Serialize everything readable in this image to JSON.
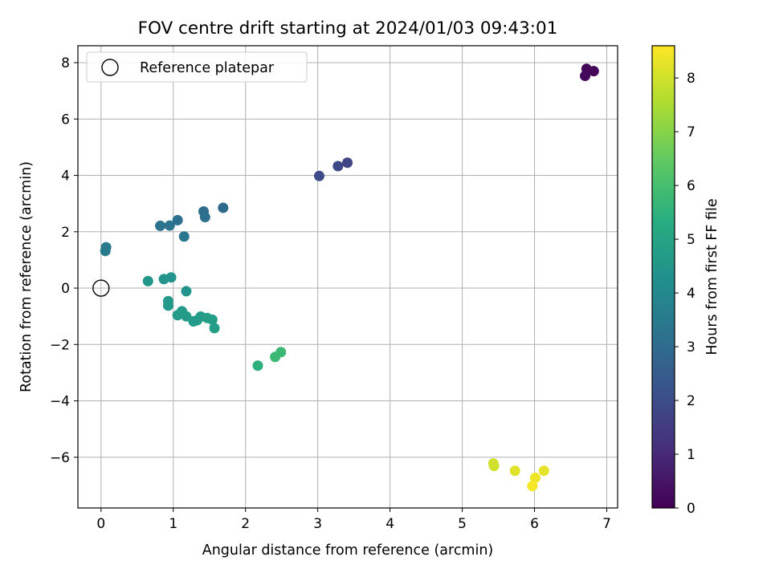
{
  "chart_data": {
    "type": "scatter",
    "title": "FOV centre drift starting at 2024/01/03 09:43:01",
    "xlabel": "Angular distance from reference (arcmin)",
    "ylabel": "Rotation from reference (arcmin)",
    "xlim": [
      -0.32,
      7.15
    ],
    "ylim": [
      -7.8,
      8.6
    ],
    "xticks": [
      0,
      1,
      2,
      3,
      4,
      5,
      6,
      7
    ],
    "yticks": [
      -6,
      -4,
      -2,
      0,
      2,
      4,
      6,
      8
    ],
    "grid": true,
    "legend": {
      "position": "top-left",
      "entries": [
        {
          "label": "Reference platepar",
          "marker": "open-circle"
        }
      ]
    },
    "reference_point": {
      "x": 0,
      "y": 0
    },
    "colorbar": {
      "label": "Hours from first FF file",
      "range": [
        0,
        8.6
      ],
      "ticks": [
        0,
        1,
        2,
        3,
        4,
        5,
        6,
        7,
        8
      ],
      "colormap": "viridis"
    },
    "points": [
      {
        "x": 6.72,
        "y": 7.78,
        "c": 0.1
      },
      {
        "x": 6.82,
        "y": 7.7,
        "c": 0.15
      },
      {
        "x": 6.7,
        "y": 7.53,
        "c": 0.2
      },
      {
        "x": 3.41,
        "y": 4.45,
        "c": 1.8
      },
      {
        "x": 3.28,
        "y": 4.33,
        "c": 1.9
      },
      {
        "x": 3.02,
        "y": 3.98,
        "c": 2.0
      },
      {
        "x": 1.69,
        "y": 2.85,
        "c": 3.0
      },
      {
        "x": 1.42,
        "y": 2.72,
        "c": 3.1
      },
      {
        "x": 1.44,
        "y": 2.52,
        "c": 3.2
      },
      {
        "x": 1.06,
        "y": 2.41,
        "c": 3.2
      },
      {
        "x": 0.82,
        "y": 2.21,
        "c": 3.3
      },
      {
        "x": 0.95,
        "y": 2.22,
        "c": 3.3
      },
      {
        "x": 1.15,
        "y": 1.83,
        "c": 3.4
      },
      {
        "x": 0.07,
        "y": 1.45,
        "c": 3.5
      },
      {
        "x": 0.06,
        "y": 1.32,
        "c": 3.5
      },
      {
        "x": 0.65,
        "y": 0.25,
        "c": 4.5
      },
      {
        "x": 0.87,
        "y": 0.32,
        "c": 4.4
      },
      {
        "x": 0.97,
        "y": 0.38,
        "c": 4.4
      },
      {
        "x": 1.18,
        "y": -0.11,
        "c": 4.4
      },
      {
        "x": 0.93,
        "y": -0.46,
        "c": 4.6
      },
      {
        "x": 0.93,
        "y": -0.62,
        "c": 4.6
      },
      {
        "x": 1.06,
        "y": -0.96,
        "c": 4.7
      },
      {
        "x": 1.12,
        "y": -0.82,
        "c": 4.7
      },
      {
        "x": 1.18,
        "y": -1.0,
        "c": 4.7
      },
      {
        "x": 1.28,
        "y": -1.18,
        "c": 4.7
      },
      {
        "x": 1.33,
        "y": -1.14,
        "c": 4.7
      },
      {
        "x": 1.38,
        "y": -1.01,
        "c": 4.7
      },
      {
        "x": 1.47,
        "y": -1.06,
        "c": 4.8
      },
      {
        "x": 1.54,
        "y": -1.12,
        "c": 4.8
      },
      {
        "x": 1.57,
        "y": -1.42,
        "c": 4.8
      },
      {
        "x": 2.17,
        "y": -2.75,
        "c": 5.5
      },
      {
        "x": 2.41,
        "y": -2.44,
        "c": 5.8
      },
      {
        "x": 2.49,
        "y": -2.27,
        "c": 5.8
      },
      {
        "x": 5.43,
        "y": -6.22,
        "c": 8.0
      },
      {
        "x": 5.44,
        "y": -6.31,
        "c": 8.0
      },
      {
        "x": 5.73,
        "y": -6.48,
        "c": 8.2
      },
      {
        "x": 6.13,
        "y": -6.48,
        "c": 8.3
      },
      {
        "x": 6.01,
        "y": -6.73,
        "c": 8.4
      },
      {
        "x": 5.97,
        "y": -7.02,
        "c": 8.5
      }
    ]
  }
}
